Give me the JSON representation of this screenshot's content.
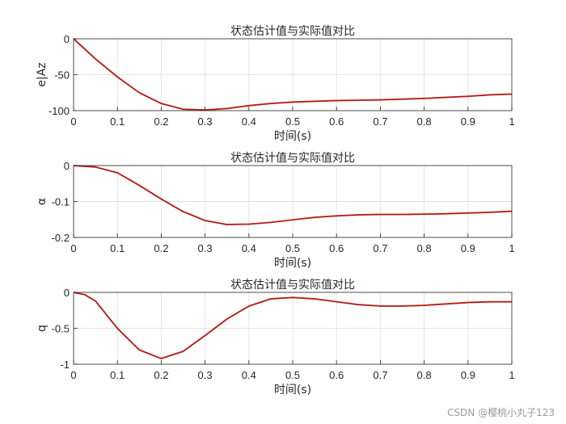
{
  "chart_data": [
    {
      "type": "line",
      "title": "状态估计值与实际值对比",
      "xlabel": "时间(s)",
      "ylabel": "e|Az",
      "xlim": [
        0,
        1
      ],
      "ylim": [
        -100,
        0
      ],
      "xticks": [
        "0",
        "0.1",
        "0.2",
        "0.3",
        "0.4",
        "0.5",
        "0.6",
        "0.7",
        "0.8",
        "0.9",
        "1"
      ],
      "yticks": [
        "0",
        "-50",
        "-100"
      ],
      "grid": true,
      "series": [
        {
          "color": "#d95319",
          "x": [
            0,
            0.05,
            0.1,
            0.15,
            0.2,
            0.25,
            0.3,
            0.35,
            0.4,
            0.45,
            0.5,
            0.55,
            0.6,
            0.65,
            0.7,
            0.75,
            0.8,
            0.85,
            0.9,
            0.95,
            1.0
          ],
          "y": [
            0,
            -28,
            -53,
            -75,
            -90,
            -98,
            -99,
            -97,
            -93,
            -90,
            -88,
            -87,
            -86,
            -85.5,
            -85,
            -84,
            -83,
            -81.5,
            -80,
            -78,
            -77
          ]
        },
        {
          "color": "#a2142f",
          "x": [
            0,
            0.05,
            0.1,
            0.15,
            0.2,
            0.25,
            0.3,
            0.35,
            0.4,
            0.45,
            0.5,
            0.55,
            0.6,
            0.65,
            0.7,
            0.75,
            0.8,
            0.85,
            0.9,
            0.95,
            1.0
          ],
          "y": [
            0,
            -28.3,
            -53.2,
            -75.2,
            -90.1,
            -98.1,
            -99.1,
            -97.1,
            -93.1,
            -90.1,
            -88.1,
            -87.1,
            -86.1,
            -85.6,
            -85.1,
            -84.1,
            -83.1,
            -81.6,
            -80.1,
            -78.1,
            -77.1
          ]
        }
      ]
    },
    {
      "type": "line",
      "title": "状态估计值与实际值对比",
      "xlabel": "时间(s)",
      "ylabel": "α",
      "xlim": [
        0,
        1
      ],
      "ylim": [
        -0.2,
        0
      ],
      "xticks": [
        "0",
        "0.1",
        "0.2",
        "0.3",
        "0.4",
        "0.5",
        "0.6",
        "0.7",
        "0.8",
        "0.9",
        "1"
      ],
      "yticks": [
        "0",
        "-0.1",
        "-0.2"
      ],
      "grid": true,
      "series": [
        {
          "color": "#d95319",
          "x": [
            0,
            0.05,
            0.1,
            0.15,
            0.2,
            0.25,
            0.3,
            0.35,
            0.4,
            0.45,
            0.5,
            0.55,
            0.6,
            0.65,
            0.7,
            0.75,
            0.8,
            0.85,
            0.9,
            0.95,
            1.0
          ],
          "y": [
            0,
            -0.004,
            -0.02,
            -0.055,
            -0.093,
            -0.128,
            -0.153,
            -0.164,
            -0.163,
            -0.158,
            -0.151,
            -0.144,
            -0.14,
            -0.137,
            -0.136,
            -0.136,
            -0.135,
            -0.134,
            -0.132,
            -0.13,
            -0.127
          ]
        },
        {
          "color": "#a2142f",
          "x": [
            0,
            0.05,
            0.1,
            0.15,
            0.2,
            0.25,
            0.3,
            0.35,
            0.4,
            0.45,
            0.5,
            0.55,
            0.6,
            0.65,
            0.7,
            0.75,
            0.8,
            0.85,
            0.9,
            0.95,
            1.0
          ],
          "y": [
            0,
            -0.0042,
            -0.0203,
            -0.0553,
            -0.0933,
            -0.1283,
            -0.1533,
            -0.1643,
            -0.1633,
            -0.1583,
            -0.1513,
            -0.1443,
            -0.1403,
            -0.1373,
            -0.1363,
            -0.1363,
            -0.1353,
            -0.1343,
            -0.1323,
            -0.1303,
            -0.1273
          ]
        }
      ]
    },
    {
      "type": "line",
      "title": "状态估计值与实际值对比",
      "xlabel": "时间(s)",
      "ylabel": "q",
      "xlim": [
        0,
        1
      ],
      "ylim": [
        -1,
        0
      ],
      "xticks": [
        "0",
        "0.1",
        "0.2",
        "0.3",
        "0.4",
        "0.5",
        "0.6",
        "0.7",
        "0.8",
        "0.9",
        "1"
      ],
      "yticks": [
        "0",
        "-0.5",
        "-1"
      ],
      "grid": true,
      "series": [
        {
          "color": "#d95319",
          "x": [
            0,
            0.025,
            0.05,
            0.1,
            0.15,
            0.2,
            0.25,
            0.3,
            0.35,
            0.4,
            0.45,
            0.5,
            0.55,
            0.6,
            0.65,
            0.7,
            0.75,
            0.8,
            0.85,
            0.9,
            0.95,
            1.0
          ],
          "y": [
            0,
            -0.03,
            -0.12,
            -0.5,
            -0.8,
            -0.92,
            -0.82,
            -0.6,
            -0.37,
            -0.19,
            -0.09,
            -0.07,
            -0.09,
            -0.13,
            -0.17,
            -0.19,
            -0.19,
            -0.18,
            -0.16,
            -0.14,
            -0.13,
            -0.13
          ]
        },
        {
          "color": "#a2142f",
          "x": [
            0,
            0.025,
            0.05,
            0.1,
            0.15,
            0.2,
            0.25,
            0.3,
            0.35,
            0.4,
            0.45,
            0.5,
            0.55,
            0.6,
            0.65,
            0.7,
            0.75,
            0.8,
            0.85,
            0.9,
            0.95,
            1.0
          ],
          "y": [
            0,
            -0.032,
            -0.122,
            -0.503,
            -0.803,
            -0.923,
            -0.823,
            -0.603,
            -0.373,
            -0.193,
            -0.093,
            -0.073,
            -0.093,
            -0.133,
            -0.173,
            -0.193,
            -0.193,
            -0.183,
            -0.163,
            -0.143,
            -0.133,
            -0.133
          ]
        }
      ]
    }
  ],
  "watermark": "CSDN @樱桃小丸子123"
}
